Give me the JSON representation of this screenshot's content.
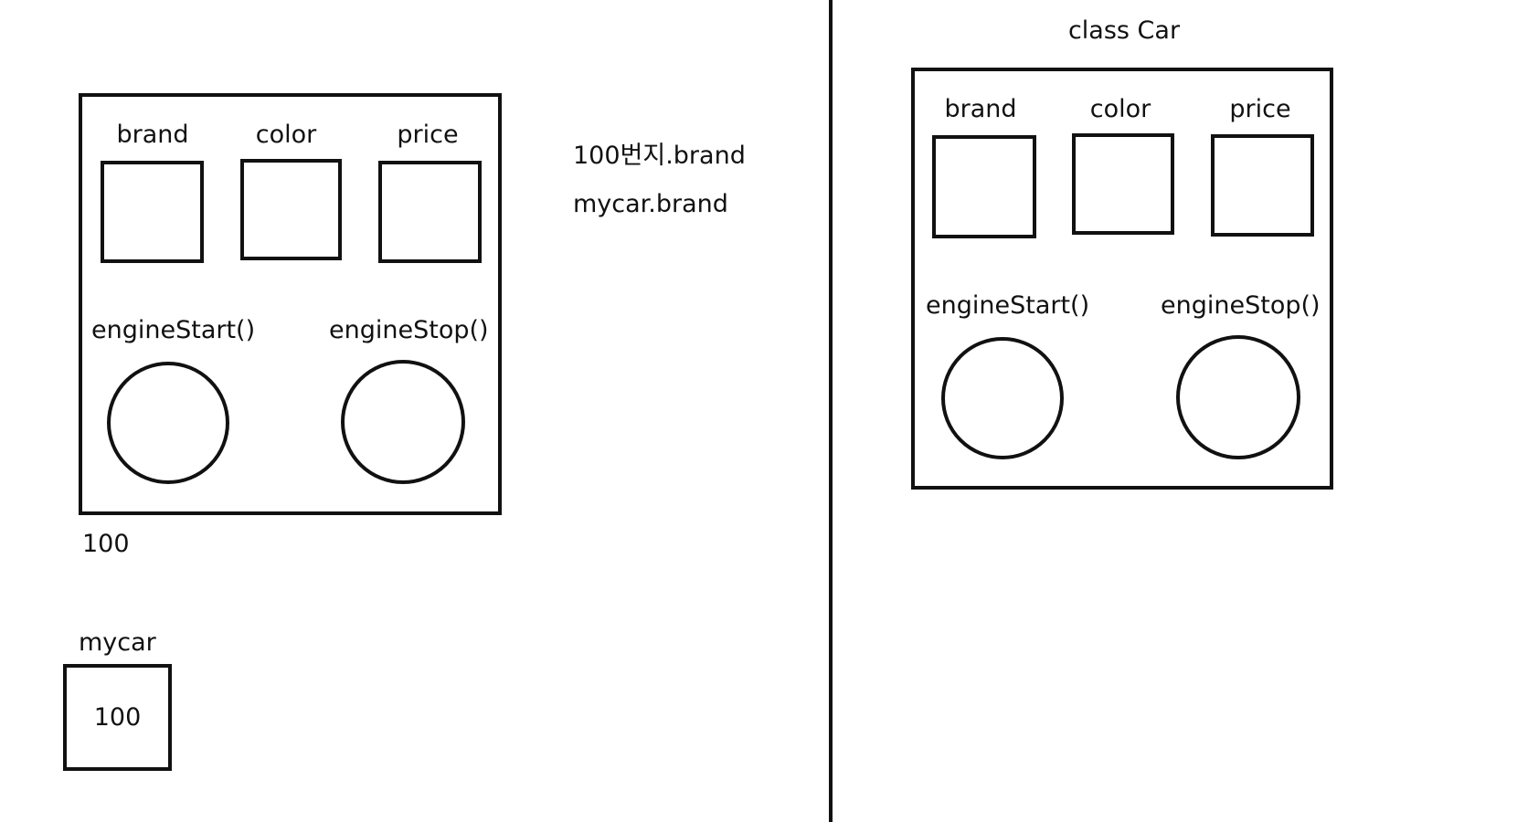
{
  "object_instance": {
    "fields": [
      "brand",
      "color",
      "price"
    ],
    "methods": [
      "engineStart()",
      "engineStop()"
    ],
    "address_label": "100"
  },
  "reference_variable": {
    "name": "mycar",
    "value": "100"
  },
  "notes": [
    "100번지.brand",
    "mycar.brand"
  ],
  "class_definition": {
    "title": "class Car",
    "fields": [
      "brand",
      "color",
      "price"
    ],
    "methods": [
      "engineStart()",
      "engineStop()"
    ]
  },
  "colors": {
    "stroke": "#111111",
    "background": "#ffffff"
  }
}
